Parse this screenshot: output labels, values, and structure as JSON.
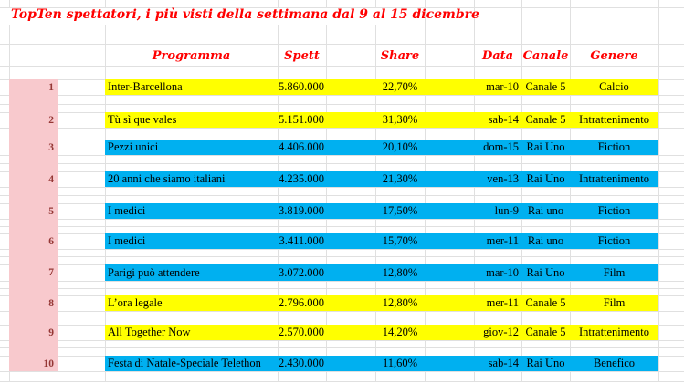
{
  "title": "TopTen spettatori, i più visti della settimana dal 9 al 15 dicembre",
  "colors": {
    "yellow": "#ffff00",
    "blue": "#00b0f0",
    "pink": "#f8c9cd",
    "header_red": "#ff0000",
    "rank_red": "#953735"
  },
  "table": {
    "headers": {
      "programma": "Programma",
      "spett": "Spett",
      "share": "Share",
      "data": "Data",
      "canale": "Canale",
      "genere": "Genere"
    },
    "rows": [
      {
        "rank": "1",
        "programma": "Inter-Barcellona",
        "spett": "5.860.000",
        "share": "22,70%",
        "data": "mar-10",
        "canale": "Canale 5",
        "genere": "Calcio",
        "color": "yellow"
      },
      {
        "rank": "2",
        "programma": "Tù sì que vales",
        "spett": "5.151.000",
        "share": "31,30%",
        "data": "sab-14",
        "canale": "Canale 5",
        "genere": "Intrattenimento",
        "color": "yellow"
      },
      {
        "rank": "3",
        "programma": "Pezzi unici",
        "spett": "4.406.000",
        "share": "20,10%",
        "data": "dom-15",
        "canale": "Rai Uno",
        "genere": "Fiction",
        "color": "blue"
      },
      {
        "rank": "4",
        "programma": "20 anni che siamo italiani",
        "spett": "4.235.000",
        "share": "21,30%",
        "data": "ven-13",
        "canale": "Rai Uno",
        "genere": "Intrattenimento",
        "color": "blue"
      },
      {
        "rank": "5",
        "programma": "I medici",
        "spett": "3.819.000",
        "share": "17,50%",
        "data": "lun-9",
        "canale": "Rai uno",
        "genere": "Fiction",
        "color": "blue"
      },
      {
        "rank": "6",
        "programma": "I medici",
        "spett": "3.411.000",
        "share": "15,70%",
        "data": "mer-11",
        "canale": "Rai uno",
        "genere": "Fiction",
        "color": "blue"
      },
      {
        "rank": "7",
        "programma": "Parigi può attendere",
        "spett": "3.072.000",
        "share": "12,80%",
        "data": "mar-10",
        "canale": "Rai Uno",
        "genere": "Film",
        "color": "blue"
      },
      {
        "rank": "8",
        "programma": "L’ora legale",
        "spett": "2.796.000",
        "share": "12,80%",
        "data": "mer-11",
        "canale": "Canale 5",
        "genere": "Film",
        "color": "yellow"
      },
      {
        "rank": "9",
        "programma": "All Together Now",
        "spett": "2.570.000",
        "share": "14,20%",
        "data": "giov-12",
        "canale": "Canale 5",
        "genere": "Intrattenimento",
        "color": "yellow"
      },
      {
        "rank": "10",
        "programma": "Festa di Natale-Speciale Telethon",
        "spett": "2.430.000",
        "share": "11,60%",
        "data": "sab-14",
        "canale": "Rai Uno",
        "genere": "Benefico",
        "color": "blue"
      }
    ]
  }
}
